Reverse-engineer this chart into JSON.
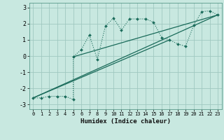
{
  "xlabel": "Humidex (Indice chaleur)",
  "bg_color": "#c8e8e0",
  "grid_color": "#a0c8c0",
  "line_color": "#1a6b5a",
  "xlim": [
    -0.5,
    23.5
  ],
  "ylim": [
    -3.3,
    3.3
  ],
  "xticks": [
    0,
    1,
    2,
    3,
    4,
    5,
    6,
    7,
    8,
    9,
    10,
    11,
    12,
    13,
    14,
    15,
    16,
    17,
    18,
    19,
    20,
    21,
    22,
    23
  ],
  "yticks": [
    -3,
    -2,
    -1,
    0,
    1,
    2,
    3
  ],
  "scatter_x": [
    0,
    1,
    2,
    3,
    4,
    5,
    5,
    6,
    7,
    8,
    9,
    10,
    11,
    12,
    13,
    14,
    15,
    16,
    17,
    18,
    19,
    20,
    21,
    22,
    23
  ],
  "scatter_y": [
    -2.6,
    -2.6,
    -2.5,
    -2.5,
    -2.5,
    -2.7,
    -0.05,
    0.4,
    1.3,
    -0.2,
    1.85,
    2.35,
    1.6,
    2.3,
    2.3,
    2.3,
    2.1,
    1.15,
    1.0,
    0.75,
    0.6,
    1.9,
    2.75,
    2.8,
    2.55
  ],
  "line1_x": [
    0,
    23
  ],
  "line1_y": [
    -2.6,
    2.55
  ],
  "line2_x": [
    0,
    17
  ],
  "line2_y": [
    -2.6,
    1.0
  ],
  "line3_x": [
    5,
    23
  ],
  "line3_y": [
    -0.05,
    2.55
  ]
}
